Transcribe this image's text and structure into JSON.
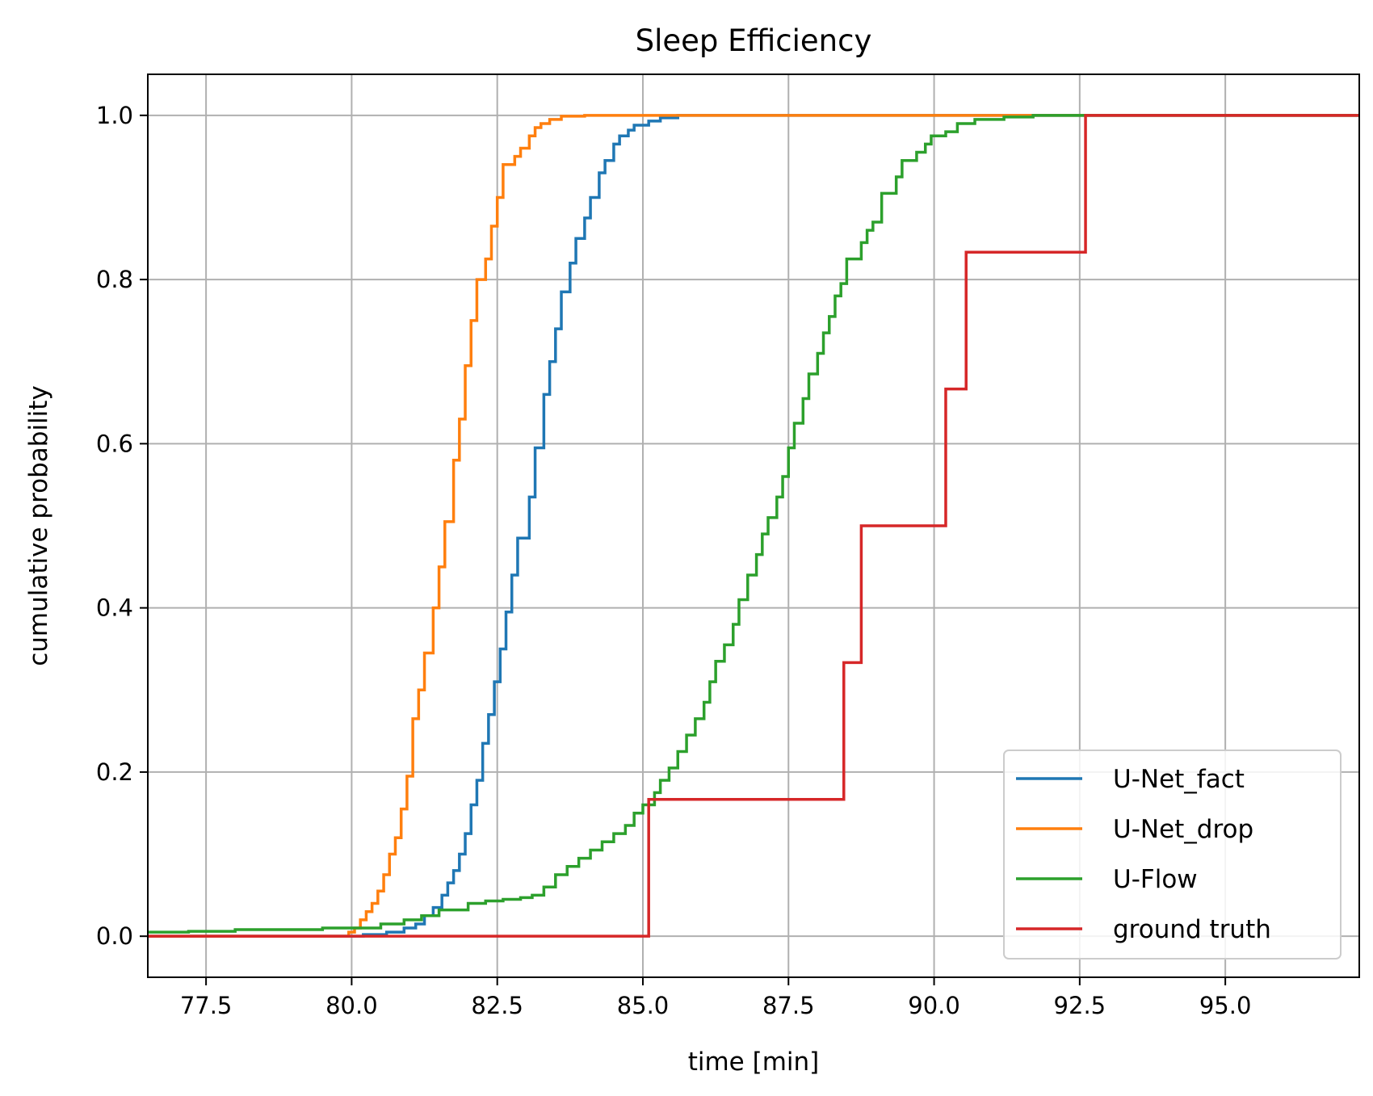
{
  "chart_data": {
    "type": "line",
    "title": "Sleep Efficiency",
    "xlabel": "time [min]",
    "ylabel": "cumulative probability",
    "xlim": [
      76.5,
      97.3
    ],
    "ylim": [
      -0.05,
      1.05
    ],
    "xticks": [
      77.5,
      80.0,
      82.5,
      85.0,
      87.5,
      90.0,
      92.5,
      95.0
    ],
    "xtick_labels": [
      "77.5",
      "80.0",
      "82.5",
      "85.0",
      "87.5",
      "90.0",
      "92.5",
      "95.0"
    ],
    "yticks": [
      0.0,
      0.2,
      0.4,
      0.6,
      0.8,
      1.0
    ],
    "ytick_labels": [
      "0.0",
      "0.2",
      "0.4",
      "0.6",
      "0.8",
      "1.0"
    ],
    "grid": true,
    "legend_position": "lower-right",
    "step": "post",
    "series": [
      {
        "name": "U-Net_fact",
        "color": "#1f77b4",
        "points": [
          [
            76.5,
            0.0
          ],
          [
            80.2,
            0.002
          ],
          [
            80.6,
            0.005
          ],
          [
            80.9,
            0.01
          ],
          [
            81.1,
            0.015
          ],
          [
            81.25,
            0.025
          ],
          [
            81.4,
            0.035
          ],
          [
            81.55,
            0.05
          ],
          [
            81.65,
            0.065
          ],
          [
            81.75,
            0.08
          ],
          [
            81.85,
            0.1
          ],
          [
            81.95,
            0.125
          ],
          [
            82.05,
            0.16
          ],
          [
            82.15,
            0.19
          ],
          [
            82.25,
            0.235
          ],
          [
            82.35,
            0.27
          ],
          [
            82.45,
            0.31
          ],
          [
            82.55,
            0.35
          ],
          [
            82.65,
            0.395
          ],
          [
            82.75,
            0.44
          ],
          [
            82.85,
            0.485
          ],
          [
            83.05,
            0.535
          ],
          [
            83.15,
            0.595
          ],
          [
            83.3,
            0.66
          ],
          [
            83.4,
            0.7
          ],
          [
            83.5,
            0.74
          ],
          [
            83.6,
            0.785
          ],
          [
            83.75,
            0.82
          ],
          [
            83.85,
            0.85
          ],
          [
            84.0,
            0.875
          ],
          [
            84.1,
            0.9
          ],
          [
            84.25,
            0.93
          ],
          [
            84.35,
            0.945
          ],
          [
            84.5,
            0.965
          ],
          [
            84.6,
            0.975
          ],
          [
            84.75,
            0.982
          ],
          [
            84.85,
            0.988
          ],
          [
            85.1,
            0.993
          ],
          [
            85.3,
            0.997
          ],
          [
            85.6,
            1.0
          ],
          [
            97.3,
            1.0
          ]
        ]
      },
      {
        "name": "U-Net_drop",
        "color": "#ff7f0e",
        "points": [
          [
            76.5,
            0.0
          ],
          [
            79.95,
            0.005
          ],
          [
            80.05,
            0.01
          ],
          [
            80.15,
            0.02
          ],
          [
            80.25,
            0.03
          ],
          [
            80.35,
            0.04
          ],
          [
            80.45,
            0.055
          ],
          [
            80.55,
            0.075
          ],
          [
            80.65,
            0.1
          ],
          [
            80.75,
            0.12
          ],
          [
            80.85,
            0.155
          ],
          [
            80.95,
            0.195
          ],
          [
            81.05,
            0.265
          ],
          [
            81.15,
            0.3
          ],
          [
            81.25,
            0.345
          ],
          [
            81.4,
            0.4
          ],
          [
            81.5,
            0.45
          ],
          [
            81.6,
            0.505
          ],
          [
            81.75,
            0.58
          ],
          [
            81.85,
            0.63
          ],
          [
            81.95,
            0.695
          ],
          [
            82.05,
            0.75
          ],
          [
            82.15,
            0.8
          ],
          [
            82.3,
            0.825
          ],
          [
            82.4,
            0.865
          ],
          [
            82.5,
            0.9
          ],
          [
            82.6,
            0.94
          ],
          [
            82.8,
            0.95
          ],
          [
            82.9,
            0.96
          ],
          [
            83.05,
            0.975
          ],
          [
            83.15,
            0.985
          ],
          [
            83.25,
            0.99
          ],
          [
            83.4,
            0.995
          ],
          [
            83.6,
            0.999
          ],
          [
            84.0,
            1.0
          ],
          [
            97.3,
            1.0
          ]
        ]
      },
      {
        "name": "U-Flow",
        "color": "#2ca02c",
        "points": [
          [
            76.5,
            0.005
          ],
          [
            77.2,
            0.006
          ],
          [
            78.0,
            0.008
          ],
          [
            79.5,
            0.01
          ],
          [
            80.5,
            0.015
          ],
          [
            80.9,
            0.02
          ],
          [
            81.2,
            0.025
          ],
          [
            81.5,
            0.032
          ],
          [
            82.0,
            0.04
          ],
          [
            82.3,
            0.043
          ],
          [
            82.6,
            0.045
          ],
          [
            82.9,
            0.047
          ],
          [
            83.1,
            0.05
          ],
          [
            83.3,
            0.06
          ],
          [
            83.5,
            0.075
          ],
          [
            83.7,
            0.085
          ],
          [
            83.9,
            0.095
          ],
          [
            84.1,
            0.105
          ],
          [
            84.3,
            0.115
          ],
          [
            84.5,
            0.125
          ],
          [
            84.7,
            0.135
          ],
          [
            84.85,
            0.15
          ],
          [
            85.0,
            0.16
          ],
          [
            85.2,
            0.175
          ],
          [
            85.3,
            0.19
          ],
          [
            85.45,
            0.205
          ],
          [
            85.6,
            0.225
          ],
          [
            85.75,
            0.245
          ],
          [
            85.9,
            0.265
          ],
          [
            86.05,
            0.285
          ],
          [
            86.15,
            0.31
          ],
          [
            86.25,
            0.335
          ],
          [
            86.4,
            0.355
          ],
          [
            86.55,
            0.38
          ],
          [
            86.65,
            0.41
          ],
          [
            86.8,
            0.44
          ],
          [
            86.95,
            0.465
          ],
          [
            87.05,
            0.49
          ],
          [
            87.15,
            0.51
          ],
          [
            87.3,
            0.535
          ],
          [
            87.4,
            0.56
          ],
          [
            87.5,
            0.595
          ],
          [
            87.6,
            0.625
          ],
          [
            87.75,
            0.655
          ],
          [
            87.85,
            0.685
          ],
          [
            88.0,
            0.71
          ],
          [
            88.1,
            0.735
          ],
          [
            88.2,
            0.755
          ],
          [
            88.3,
            0.78
          ],
          [
            88.4,
            0.795
          ],
          [
            88.5,
            0.825
          ],
          [
            88.75,
            0.845
          ],
          [
            88.85,
            0.86
          ],
          [
            88.95,
            0.87
          ],
          [
            89.1,
            0.905
          ],
          [
            89.35,
            0.925
          ],
          [
            89.45,
            0.945
          ],
          [
            89.7,
            0.955
          ],
          [
            89.85,
            0.965
          ],
          [
            89.95,
            0.975
          ],
          [
            90.2,
            0.98
          ],
          [
            90.4,
            0.99
          ],
          [
            90.7,
            0.995
          ],
          [
            91.2,
            0.998
          ],
          [
            91.7,
            1.0
          ],
          [
            97.3,
            1.0
          ]
        ]
      },
      {
        "name": "ground truth",
        "color": "#d62728",
        "points": [
          [
            76.5,
            0.0
          ],
          [
            85.1,
            0.1667
          ],
          [
            88.45,
            0.3333
          ],
          [
            88.75,
            0.5
          ],
          [
            90.2,
            0.6667
          ],
          [
            90.55,
            0.8333
          ],
          [
            92.6,
            1.0
          ],
          [
            97.3,
            1.0
          ]
        ]
      }
    ]
  }
}
